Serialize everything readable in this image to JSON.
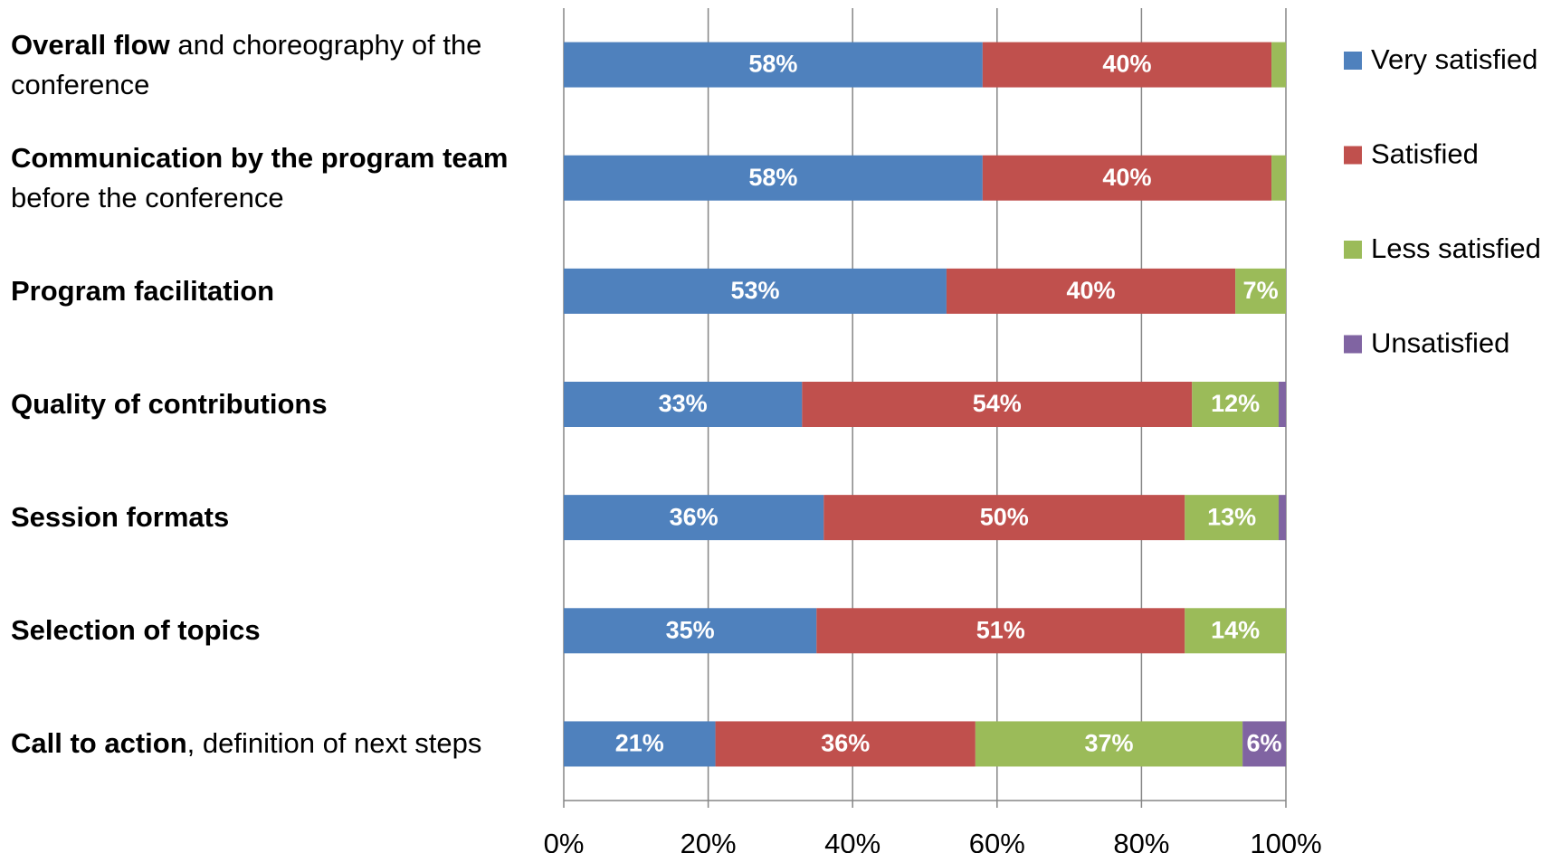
{
  "chart_data": {
    "type": "stacked-bar-horizontal",
    "categories": [
      [
        "Overall flow",
        " and choreography of the conference"
      ],
      [
        "Communication by the program team",
        " before the conference"
      ],
      [
        "Program facilitation"
      ],
      [
        "Quality of contributions"
      ],
      [
        "Session formats"
      ],
      [
        "Selection of topics"
      ],
      [
        "Call to action",
        ", definition of next steps"
      ]
    ],
    "series": [
      {
        "name": "Very satisfied",
        "color": "#4f81bd",
        "values": [
          58,
          58,
          53,
          33,
          36,
          35,
          21
        ],
        "value_labels": [
          "58%",
          "58%",
          "53%",
          "33%",
          "36%",
          "35%",
          "21%"
        ]
      },
      {
        "name": "Satisfied",
        "color": "#c0504d",
        "values": [
          40,
          40,
          40,
          54,
          50,
          51,
          36
        ],
        "value_labels": [
          "40%",
          "40%",
          "40%",
          "54%",
          "50%",
          "51%",
          "36%"
        ]
      },
      {
        "name": "Less satisfied",
        "color": "#9bbb59",
        "values": [
          2,
          2,
          7,
          12,
          13,
          14,
          37
        ],
        "value_labels": [
          null,
          null,
          "7%",
          "12%",
          "13%",
          "14%",
          "37%"
        ]
      },
      {
        "name": "Unsatisfied",
        "color": "#8064a2",
        "values": [
          0,
          0,
          0,
          1,
          1,
          0,
          6
        ],
        "value_labels": [
          null,
          null,
          null,
          null,
          null,
          null,
          "6%"
        ]
      }
    ],
    "xlim": [
      0,
      100
    ],
    "xticks": [
      {
        "value": 0,
        "label": "0%"
      },
      {
        "value": 20,
        "label": "20%"
      },
      {
        "value": 40,
        "label": "40%"
      },
      {
        "value": 60,
        "label": "60%"
      },
      {
        "value": 80,
        "label": "80%"
      },
      {
        "value": 100,
        "label": "100%"
      }
    ],
    "grid": true,
    "legend": "right"
  }
}
